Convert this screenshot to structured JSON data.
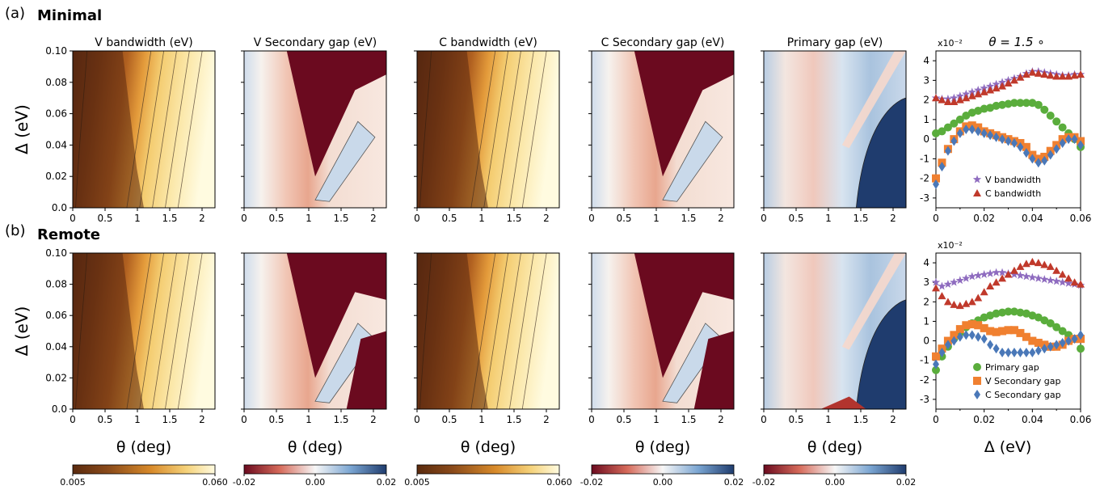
{
  "panel_labels": {
    "a": {
      "tag": "(a)",
      "name": "Minimal"
    },
    "b": {
      "tag": "(b)",
      "name": "Remote"
    }
  },
  "axis_labels": {
    "theta": "θ (deg)",
    "delta": "Δ (eV)",
    "delta_unit_x": "Δ (eV)"
  },
  "colors": {
    "copper_low": "#5a2a0e",
    "copper_mid": "#e0902a",
    "copper_high": "#fffbe0",
    "div_neg": "#6b0a1f",
    "div_zero": "#f7f7f7",
    "div_pos": "#1f3c6e",
    "purple": "#8e6bbf",
    "red": "#c0392b",
    "orange": "#f08030",
    "blue": "#4a78b8",
    "green": "#5aad3c"
  },
  "chart_data": [
    {
      "type": "heatmap",
      "title": "V bandwidth (eV)",
      "colormap": "copper",
      "row": "a",
      "xlim": [
        0,
        2.2
      ],
      "ylim": [
        0,
        0.1
      ],
      "xticks": [
        "0",
        "0.5",
        "1",
        "1.5",
        "2"
      ],
      "yticks": [
        "0.0",
        "0.02",
        "0.04",
        "0.06",
        "0.08",
        "0.10"
      ]
    },
    {
      "type": "heatmap",
      "title": "V Secondary gap (eV)",
      "colormap": "diverging",
      "row": "a",
      "xlim": [
        0,
        2.2
      ],
      "ylim": [
        0,
        0.1
      ],
      "xticks": [
        "0",
        "0.5",
        "1",
        "1.5",
        "2"
      ]
    },
    {
      "type": "heatmap",
      "title": "C bandwidth (eV)",
      "colormap": "copper",
      "row": "a",
      "xlim": [
        0,
        2.2
      ],
      "ylim": [
        0,
        0.1
      ],
      "xticks": [
        "0",
        "0.5",
        "1",
        "1.5",
        "2"
      ]
    },
    {
      "type": "heatmap",
      "title": "C Secondary gap (eV)",
      "colormap": "diverging",
      "row": "a",
      "xlim": [
        0,
        2.2
      ],
      "ylim": [
        0,
        0.1
      ],
      "xticks": [
        "0",
        "0.5",
        "1",
        "1.5",
        "2"
      ]
    },
    {
      "type": "heatmap",
      "title": "Primary gap (eV)",
      "colormap": "diverging",
      "row": "a",
      "xlim": [
        0,
        2.2
      ],
      "ylim": [
        0,
        0.1
      ],
      "xticks": [
        "0",
        "0.5",
        "1",
        "1.5",
        "2"
      ]
    },
    {
      "type": "scatter",
      "title": "θ = 1.5 ∘",
      "row": "a",
      "scale_label": "x10⁻²",
      "xlim": [
        0,
        0.06
      ],
      "ylim": [
        -3.5,
        4.5
      ],
      "xticks": [
        "0",
        "0.02",
        "0.04",
        "0.06"
      ],
      "yticks": [
        "4",
        "3",
        "2",
        "1",
        "0",
        "-1",
        "-2",
        "-3"
      ],
      "x": [
        0,
        0.0025,
        0.005,
        0.0075,
        0.01,
        0.0125,
        0.015,
        0.0175,
        0.02,
        0.0225,
        0.025,
        0.0275,
        0.03,
        0.0325,
        0.035,
        0.0375,
        0.04,
        0.0425,
        0.045,
        0.0475,
        0.05,
        0.0525,
        0.055,
        0.0575,
        0.06
      ],
      "series": [
        {
          "name": "V bandwidth",
          "marker": "star",
          "color": "#8e6bbf",
          "values": [
            2.1,
            2.05,
            2.05,
            2.1,
            2.2,
            2.3,
            2.4,
            2.5,
            2.6,
            2.7,
            2.8,
            2.9,
            3.0,
            3.1,
            3.2,
            3.35,
            3.45,
            3.45,
            3.4,
            3.35,
            3.3,
            3.25,
            3.25,
            3.3,
            3.3
          ]
        },
        {
          "name": "C bandwidth",
          "marker": "triangle",
          "color": "#c0392b",
          "values": [
            2.1,
            2.0,
            1.9,
            1.9,
            2.0,
            2.1,
            2.2,
            2.3,
            2.4,
            2.5,
            2.6,
            2.7,
            2.85,
            3.0,
            3.15,
            3.3,
            3.4,
            3.35,
            3.3,
            3.25,
            3.2,
            3.2,
            3.2,
            3.25,
            3.3
          ]
        },
        {
          "name": "",
          "marker": "circle",
          "color": "#5aad3c",
          "values": [
            0.3,
            0.4,
            0.6,
            0.8,
            1.0,
            1.2,
            1.35,
            1.45,
            1.55,
            1.6,
            1.7,
            1.75,
            1.8,
            1.85,
            1.85,
            1.85,
            1.85,
            1.75,
            1.5,
            1.2,
            0.9,
            0.6,
            0.3,
            0.0,
            -0.4
          ]
        },
        {
          "name": "",
          "marker": "square",
          "color": "#f08030",
          "values": [
            -2.0,
            -1.2,
            -0.5,
            0.0,
            0.4,
            0.65,
            0.7,
            0.6,
            0.4,
            0.3,
            0.2,
            0.1,
            0.0,
            -0.1,
            -0.2,
            -0.4,
            -0.8,
            -1.0,
            -0.9,
            -0.6,
            -0.3,
            0.0,
            0.1,
            0.1,
            -0.1
          ]
        },
        {
          "name": "",
          "marker": "diamond",
          "color": "#4a78b8",
          "values": [
            -2.3,
            -1.4,
            -0.6,
            -0.1,
            0.3,
            0.5,
            0.5,
            0.4,
            0.3,
            0.2,
            0.1,
            0.0,
            -0.1,
            -0.2,
            -0.4,
            -0.7,
            -1.0,
            -1.2,
            -1.1,
            -0.8,
            -0.5,
            -0.2,
            0.0,
            0.0,
            -0.3
          ]
        }
      ],
      "legend": "lower-right"
    },
    {
      "type": "heatmap",
      "title": "",
      "colormap": "copper",
      "row": "b",
      "xlim": [
        0,
        2.2
      ],
      "ylim": [
        0,
        0.1
      ],
      "xticks": [
        "0",
        "0.5",
        "1",
        "1.5",
        "2"
      ],
      "yticks": [
        "0.0",
        "0.02",
        "0.04",
        "0.06",
        "0.08",
        "0.10"
      ]
    },
    {
      "type": "heatmap",
      "title": "",
      "colormap": "diverging",
      "row": "b",
      "xlim": [
        0,
        2.2
      ],
      "ylim": [
        0,
        0.1
      ],
      "xticks": [
        "0",
        "0.5",
        "1",
        "1.5",
        "2"
      ]
    },
    {
      "type": "heatmap",
      "title": "",
      "colormap": "copper",
      "row": "b",
      "xlim": [
        0,
        2.2
      ],
      "ylim": [
        0,
        0.1
      ],
      "xticks": [
        "0",
        "0.5",
        "1",
        "1.5",
        "2"
      ]
    },
    {
      "type": "heatmap",
      "title": "",
      "colormap": "diverging",
      "row": "b",
      "xlim": [
        0,
        2.2
      ],
      "ylim": [
        0,
        0.1
      ],
      "xticks": [
        "0",
        "0.5",
        "1",
        "1.5",
        "2"
      ]
    },
    {
      "type": "heatmap",
      "title": "",
      "colormap": "diverging",
      "row": "b",
      "xlim": [
        0,
        2.2
      ],
      "ylim": [
        0,
        0.1
      ],
      "xticks": [
        "0",
        "0.5",
        "1",
        "1.5",
        "2"
      ]
    },
    {
      "type": "scatter",
      "title": "",
      "row": "b",
      "scale_label": "x10⁻²",
      "xlim": [
        0,
        0.06
      ],
      "ylim": [
        -3.5,
        4.5
      ],
      "xticks": [
        "0",
        "0.02",
        "0.04",
        "0.06"
      ],
      "yticks": [
        "4",
        "3",
        "2",
        "1",
        "0",
        "-1",
        "-2",
        "-3"
      ],
      "x": [
        0,
        0.0025,
        0.005,
        0.0075,
        0.01,
        0.0125,
        0.015,
        0.0175,
        0.02,
        0.0225,
        0.025,
        0.0275,
        0.03,
        0.0325,
        0.035,
        0.0375,
        0.04,
        0.0425,
        0.045,
        0.0475,
        0.05,
        0.0525,
        0.055,
        0.0575,
        0.06
      ],
      "series": [
        {
          "name": "",
          "marker": "star",
          "color": "#8e6bbf",
          "values": [
            3.0,
            2.8,
            2.9,
            3.0,
            3.1,
            3.2,
            3.3,
            3.35,
            3.4,
            3.45,
            3.5,
            3.5,
            3.45,
            3.4,
            3.35,
            3.3,
            3.25,
            3.2,
            3.15,
            3.1,
            3.05,
            3.0,
            2.95,
            2.9,
            2.85
          ]
        },
        {
          "name": "",
          "marker": "triangle",
          "color": "#c0392b",
          "values": [
            2.7,
            2.3,
            2.0,
            1.85,
            1.8,
            1.9,
            2.0,
            2.2,
            2.5,
            2.8,
            3.0,
            3.2,
            3.4,
            3.6,
            3.8,
            3.95,
            4.05,
            4.0,
            3.9,
            3.8,
            3.6,
            3.4,
            3.2,
            3.0,
            2.9
          ]
        },
        {
          "name": "Primary gap",
          "marker": "circle",
          "color": "#5aad3c",
          "values": [
            -1.5,
            -0.8,
            -0.3,
            0.1,
            0.4,
            0.7,
            0.9,
            1.05,
            1.2,
            1.3,
            1.4,
            1.45,
            1.5,
            1.5,
            1.45,
            1.4,
            1.3,
            1.2,
            1.05,
            0.9,
            0.7,
            0.5,
            0.3,
            0.1,
            -0.4
          ]
        },
        {
          "name": "V Secondary gap",
          "marker": "square",
          "color": "#f08030",
          "values": [
            -0.8,
            -0.4,
            0.0,
            0.3,
            0.6,
            0.8,
            0.85,
            0.8,
            0.65,
            0.5,
            0.45,
            0.5,
            0.55,
            0.55,
            0.4,
            0.2,
            0.0,
            -0.1,
            -0.2,
            -0.3,
            -0.3,
            -0.2,
            0.0,
            0.1,
            0.1
          ]
        },
        {
          "name": "C Secondary gap",
          "marker": "diamond",
          "color": "#4a78b8",
          "values": [
            -1.2,
            -0.6,
            -0.2,
            0.0,
            0.2,
            0.3,
            0.3,
            0.2,
            0.1,
            -0.2,
            -0.4,
            -0.6,
            -0.6,
            -0.6,
            -0.6,
            -0.6,
            -0.6,
            -0.5,
            -0.4,
            -0.3,
            -0.2,
            -0.1,
            0.0,
            0.1,
            0.3
          ]
        }
      ],
      "legend": "lower-right"
    }
  ],
  "colorbars": [
    {
      "colormap": "copper",
      "ticks": [
        "0.005",
        "0.060"
      ]
    },
    {
      "colormap": "diverging",
      "ticks": [
        "-0.02",
        "0.00",
        "0.02"
      ]
    },
    {
      "colormap": "copper",
      "ticks": [
        "0.005",
        "0.060"
      ]
    },
    {
      "colormap": "diverging",
      "ticks": [
        "-0.02",
        "0.00",
        "0.02"
      ]
    },
    {
      "colormap": "diverging",
      "ticks": [
        "-0.02",
        "0.00",
        "0.02"
      ]
    }
  ]
}
